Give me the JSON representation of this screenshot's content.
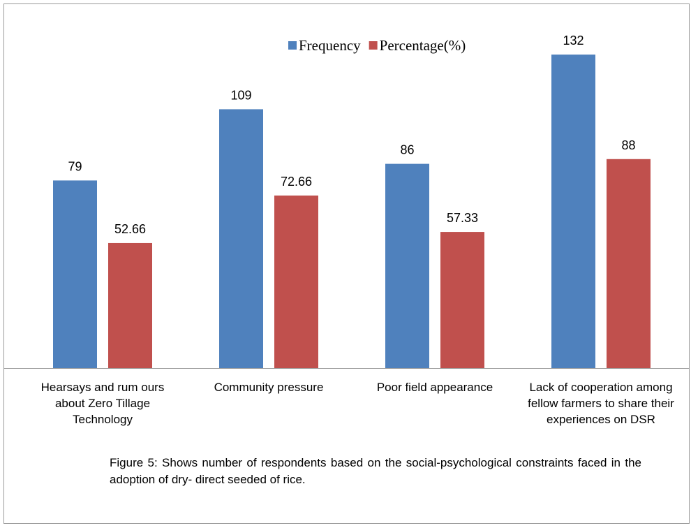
{
  "chart_data": {
    "type": "bar",
    "categories": [
      "Hearsays and rum ours about Zero Tillage Technology",
      "Community pressure",
      "Poor field appearance",
      "Lack of cooperation among fellow farmers to share their experiences on DSR"
    ],
    "series": [
      {
        "name": "Frequency",
        "color": "#4f81bd",
        "values": [
          79,
          109,
          86,
          132
        ]
      },
      {
        "name": "Percentage(%)",
        "color": "#c0504d",
        "values": [
          52.66,
          72.66,
          57.33,
          88
        ]
      }
    ],
    "ylim": [
      0,
      140
    ],
    "legend": "top",
    "caption": "Figure 5: Shows number of respondents based on the social-psychological constraints faced in the adoption of dry- direct seeded of rice."
  }
}
